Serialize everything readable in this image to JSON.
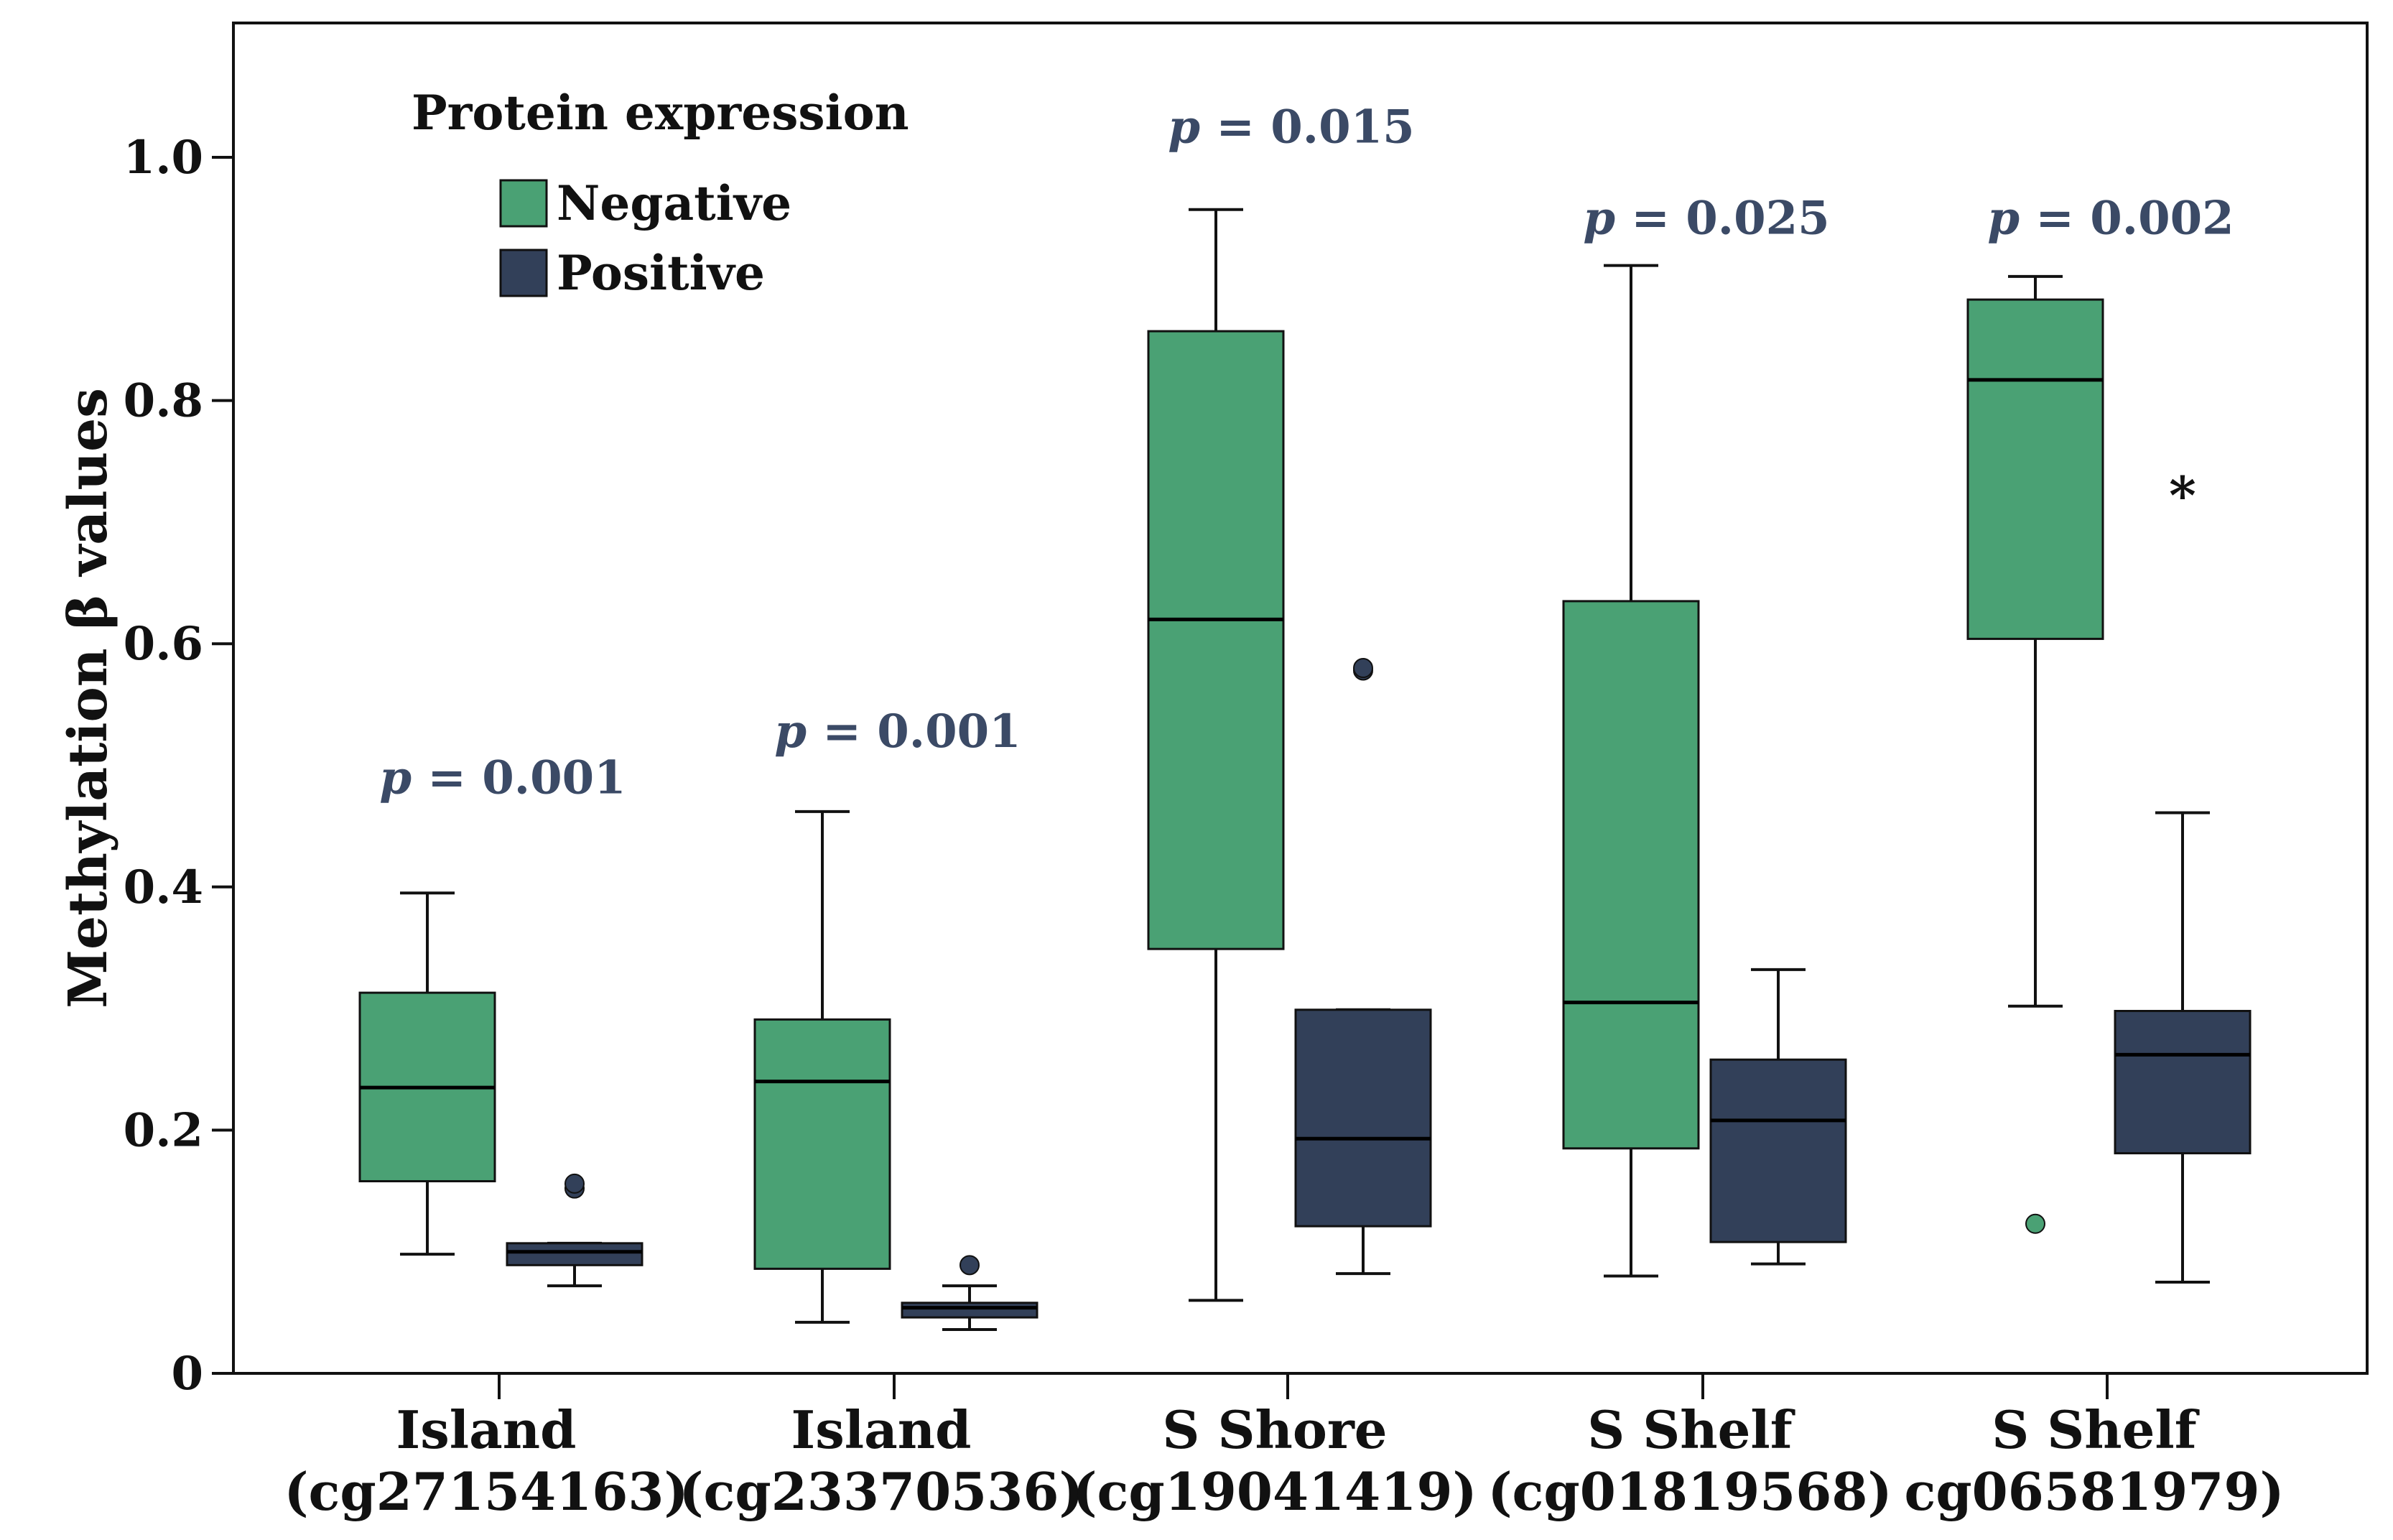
{
  "chart_data": {
    "type": "boxplot",
    "title": "",
    "ylabel": "Methylation β values",
    "xlabel": "",
    "ylim": [
      0,
      1.1
    ],
    "yticks": [
      0,
      0.2,
      0.4,
      0.6,
      0.8,
      1.0
    ],
    "ytick_labels": [
      "0",
      "0.2",
      "0.4",
      "0.6",
      "0.8",
      "1.0"
    ],
    "legend": {
      "title": "Protein expression",
      "position": "top-left",
      "entries": [
        {
          "name": "Negative",
          "color": "#4aa174"
        },
        {
          "name": "Positive",
          "color": "#324059"
        }
      ]
    },
    "categories": [
      {
        "line1": "Island",
        "line2": "(cg27154163)",
        "p_label": "p",
        "p_value": "= 0.001",
        "p_y": 0.49
      },
      {
        "line1": "Island",
        "line2": "(cg23370536)",
        "p_label": "p",
        "p_value": "= 0.001",
        "p_y": 0.528
      },
      {
        "line1": "S Shore",
        "line2": "(cg19041419)",
        "p_label": "p",
        "p_value": "= 0.015",
        "p_y": 1.025
      },
      {
        "line1": "S Shelf",
        "line2": "(cg01819568)",
        "p_label": "p",
        "p_value": "= 0.025",
        "p_y": 0.95
      },
      {
        "line1": "S Shelf",
        "line2": "cg06581979)",
        "p_label": "p",
        "p_value": "= 0.002",
        "p_y": 0.95
      }
    ],
    "series": [
      {
        "name": "Negative",
        "color": "#4aa174",
        "boxes": [
          {
            "whisker_low": 0.098,
            "q1": 0.158,
            "median": 0.235,
            "q3": 0.313,
            "whisker_high": 0.395,
            "outliers": [],
            "extremes": []
          },
          {
            "whisker_low": 0.042,
            "q1": 0.086,
            "median": 0.24,
            "q3": 0.291,
            "whisker_high": 0.462,
            "outliers": [],
            "extremes": []
          },
          {
            "whisker_low": 0.06,
            "q1": 0.349,
            "median": 0.62,
            "q3": 0.857,
            "whisker_high": 0.957,
            "outliers": [],
            "extremes": []
          },
          {
            "whisker_low": 0.08,
            "q1": 0.185,
            "median": 0.305,
            "q3": 0.635,
            "whisker_high": 0.911,
            "outliers": [],
            "extremes": []
          },
          {
            "whisker_low": 0.302,
            "q1": 0.604,
            "median": 0.817,
            "q3": 0.883,
            "whisker_high": 0.902,
            "outliers": [
              0.123
            ],
            "extremes": []
          }
        ]
      },
      {
        "name": "Positive",
        "color": "#324059",
        "boxes": [
          {
            "whisker_low": 0.072,
            "q1": 0.089,
            "median": 0.1,
            "q3": 0.107,
            "whisker_high": 0.107,
            "outliers": [
              0.152,
              0.156
            ],
            "extremes": []
          },
          {
            "whisker_low": 0.036,
            "q1": 0.046,
            "median": 0.054,
            "q3": 0.058,
            "whisker_high": 0.072,
            "outliers": [
              0.089
            ],
            "extremes": []
          },
          {
            "whisker_low": 0.082,
            "q1": 0.121,
            "median": 0.193,
            "q3": 0.299,
            "whisker_high": 0.299,
            "outliers": [
              0.578,
              0.58
            ],
            "extremes": []
          },
          {
            "whisker_low": 0.09,
            "q1": 0.108,
            "median": 0.208,
            "q3": 0.258,
            "whisker_high": 0.332,
            "outliers": [],
            "extremes": []
          },
          {
            "whisker_low": 0.075,
            "q1": 0.181,
            "median": 0.262,
            "q3": 0.298,
            "whisker_high": 0.461,
            "outliers": [],
            "extremes": [
              0.727
            ]
          }
        ]
      }
    ],
    "colors": {
      "negative": "#4aa174",
      "positive": "#324059",
      "p_value_text": "#3b4a66",
      "axis": "#111111"
    }
  }
}
